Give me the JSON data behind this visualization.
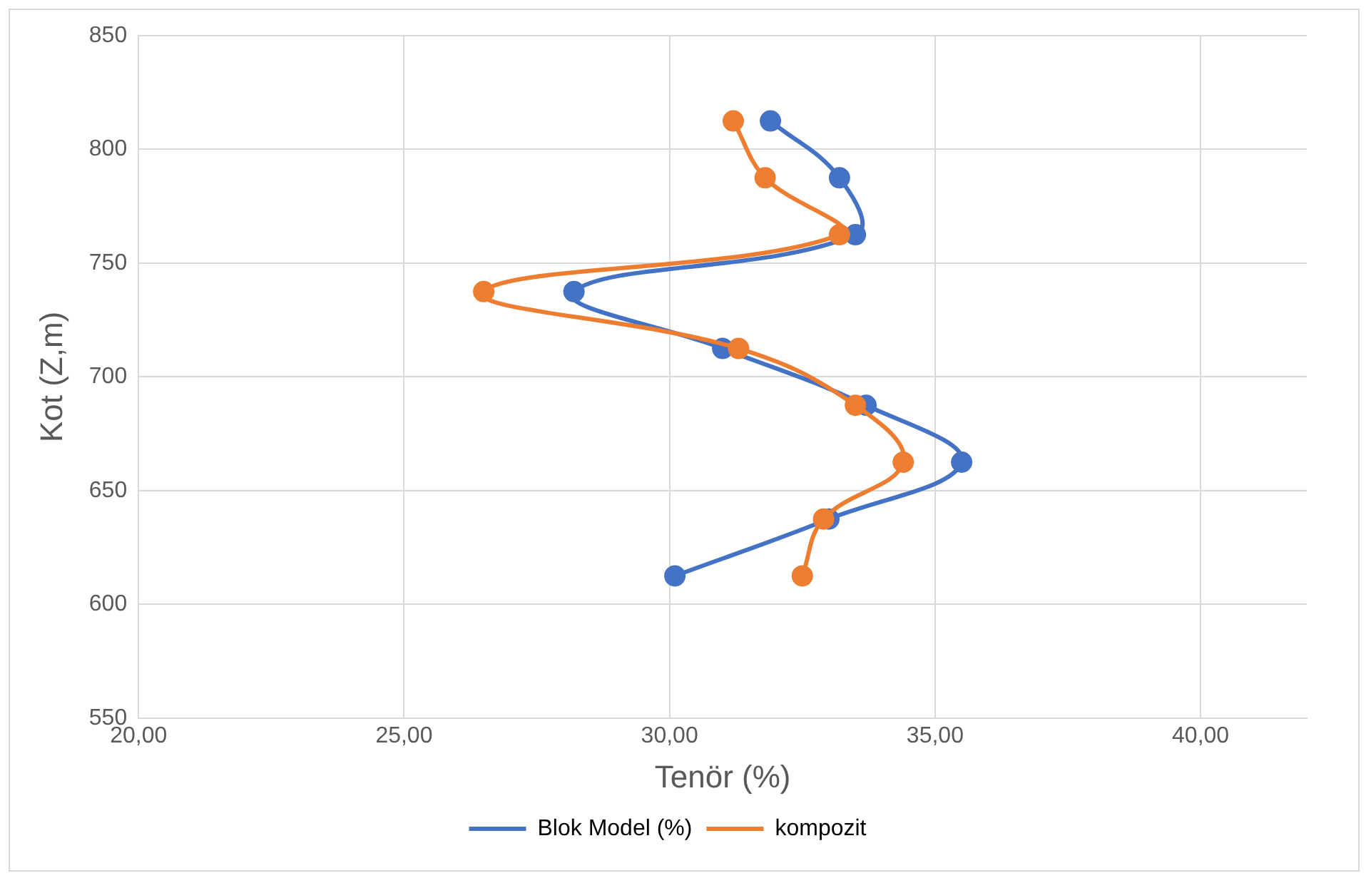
{
  "chart_data": {
    "type": "line",
    "xlabel": "Tenör (%)",
    "ylabel": "Kot (Z,m)",
    "xlim": [
      20,
      42
    ],
    "xticks": [
      {
        "value": 20,
        "label": "20,00"
      },
      {
        "value": 25,
        "label": "25,00"
      },
      {
        "value": 30,
        "label": "30,00"
      },
      {
        "value": 35,
        "label": "35,00"
      },
      {
        "value": 40,
        "label": "40,00"
      }
    ],
    "ylim": [
      550,
      850
    ],
    "yticks": [
      550,
      600,
      650,
      700,
      750,
      800,
      850
    ],
    "grid": true,
    "legend": "bottom",
    "marker": "circle",
    "line_style": "solid",
    "series": [
      {
        "name": "Blok Model (%)",
        "color": "#4472c4",
        "x": [
          31.9,
          33.2,
          33.5,
          28.2,
          31.0,
          33.7,
          35.5,
          33.0,
          30.1
        ],
        "values": [
          812.5,
          787.5,
          762.5,
          737.5,
          712.5,
          687.5,
          662.5,
          637.5,
          612.5
        ]
      },
      {
        "name": "kompozit",
        "color": "#ed7d31",
        "x": [
          31.2,
          31.8,
          33.2,
          26.5,
          31.3,
          33.5,
          34.4,
          32.9,
          32.5
        ],
        "values": [
          812.5,
          787.5,
          762.5,
          737.5,
          712.5,
          687.5,
          662.5,
          637.5,
          612.5
        ]
      }
    ]
  }
}
